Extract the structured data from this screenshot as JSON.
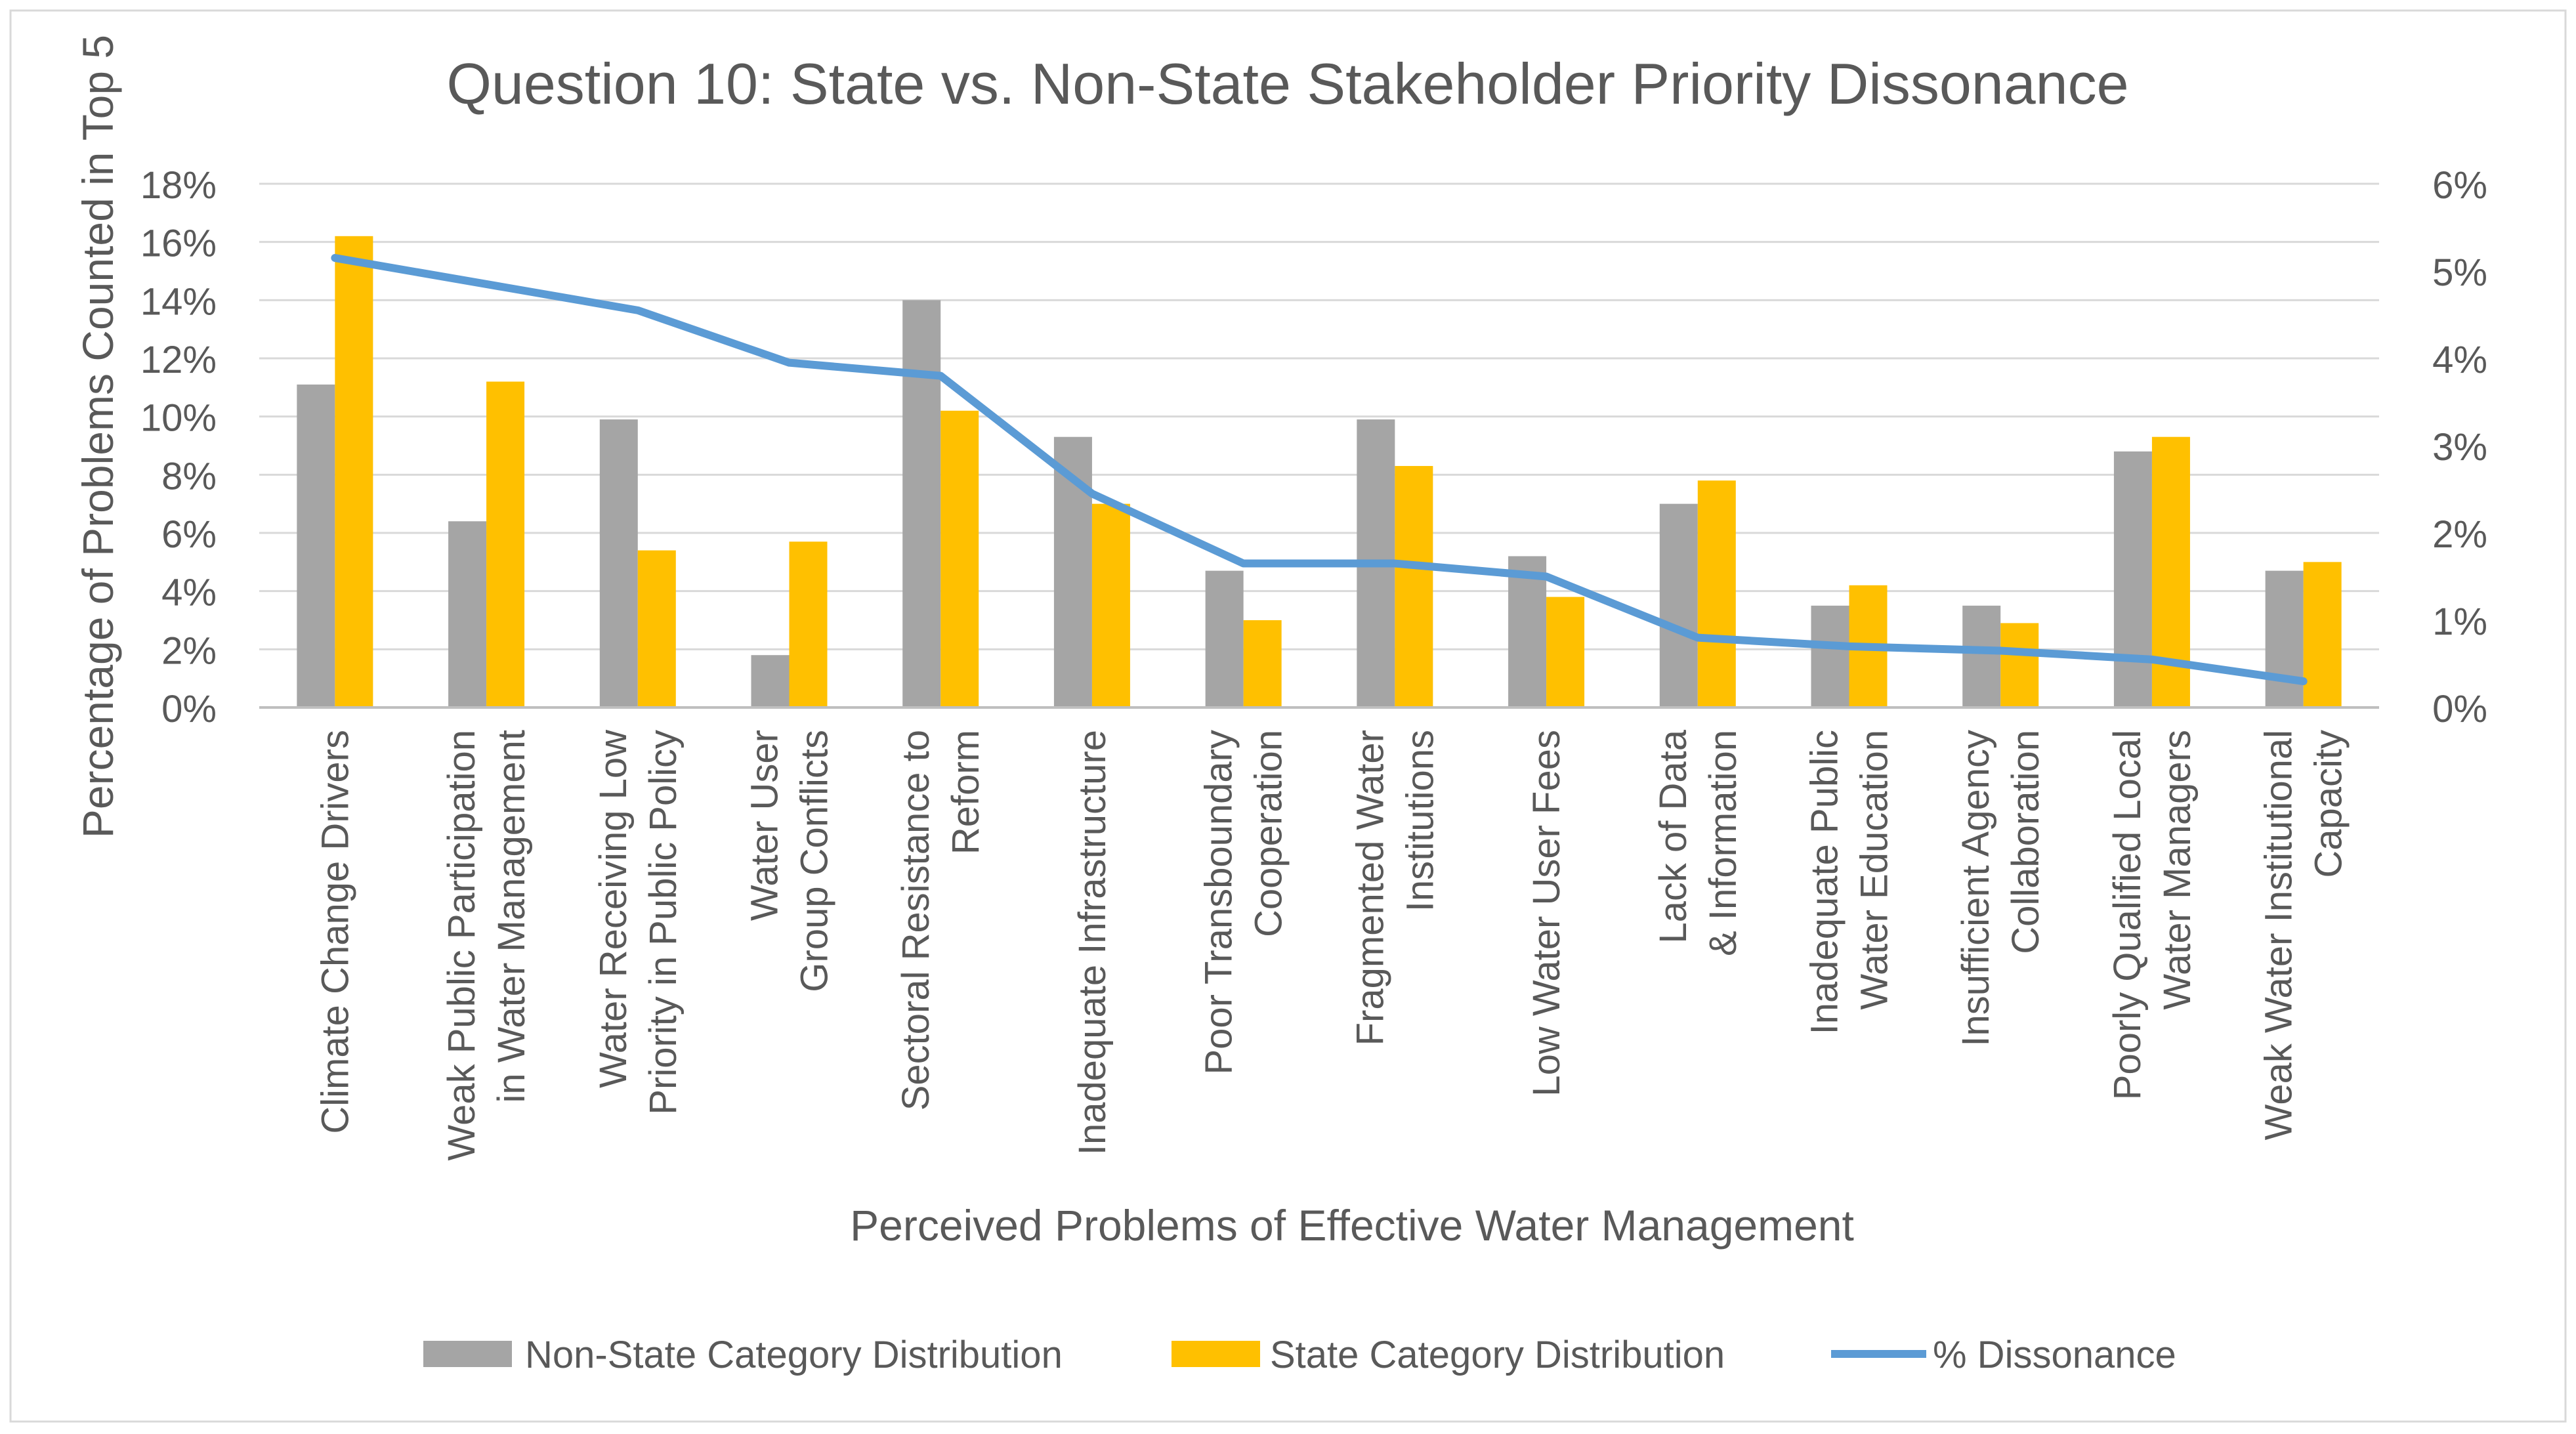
{
  "chart_data": {
    "type": "bar",
    "title": "Question 10: State vs. Non-State Stakeholder Priority Dissonance",
    "xlabel": "Perceived Problems of Effective Water Management",
    "ylabel": "Percentage of Problems Counted in Top 5",
    "ylim": [
      0,
      18
    ],
    "y2lim": [
      0,
      6
    ],
    "yticks": [
      "0%",
      "2%",
      "4%",
      "6%",
      "8%",
      "10%",
      "12%",
      "14%",
      "16%",
      "18%"
    ],
    "y2ticks": [
      "0%",
      "1%",
      "2%",
      "3%",
      "4%",
      "5%",
      "6%"
    ],
    "grid": true,
    "legend_position": "bottom",
    "categories": [
      [
        "Climate Change Drivers"
      ],
      [
        "Weak Public Participation",
        "in Water Management"
      ],
      [
        "Water Receiving Low",
        "Priority in Public Policy"
      ],
      [
        "Water User",
        "Group Conflicts"
      ],
      [
        "Sectoral Resistance to",
        "Reform"
      ],
      [
        "Inadequate Infrastructure"
      ],
      [
        "Poor Transboundary",
        "Cooperation"
      ],
      [
        "Fragmented Water",
        "Institutions"
      ],
      [
        "Low Water User Fees"
      ],
      [
        "Lack of Data",
        "& Information"
      ],
      [
        "Inadequate Public",
        "Water Education"
      ],
      [
        "Insufficient Agency",
        "Collaboration"
      ],
      [
        "Poorly Qualified Local",
        "Water Managers"
      ],
      [
        "Weak Water Institutional",
        "Capacity"
      ]
    ],
    "series": [
      {
        "name": "Non-State Category Distribution",
        "kind": "bar",
        "axis": "left",
        "color": "#a5a5a5",
        "values": [
          11.1,
          6.4,
          9.9,
          1.8,
          14.0,
          9.3,
          4.7,
          9.9,
          5.2,
          7.0,
          3.5,
          3.5,
          8.8,
          4.7
        ]
      },
      {
        "name": "State Category Distribution",
        "kind": "bar",
        "axis": "left",
        "color": "#ffc000",
        "values": [
          16.2,
          11.2,
          5.4,
          5.7,
          10.2,
          7.0,
          3.0,
          8.3,
          3.8,
          7.8,
          4.2,
          2.9,
          9.3,
          5.0
        ]
      },
      {
        "name": "% Dissonance",
        "kind": "line",
        "axis": "right",
        "color": "#5b9bd5",
        "values": [
          5.15,
          4.85,
          4.55,
          3.95,
          3.8,
          2.45,
          1.65,
          1.65,
          1.5,
          0.8,
          0.7,
          0.65,
          0.55,
          0.3
        ]
      }
    ]
  }
}
